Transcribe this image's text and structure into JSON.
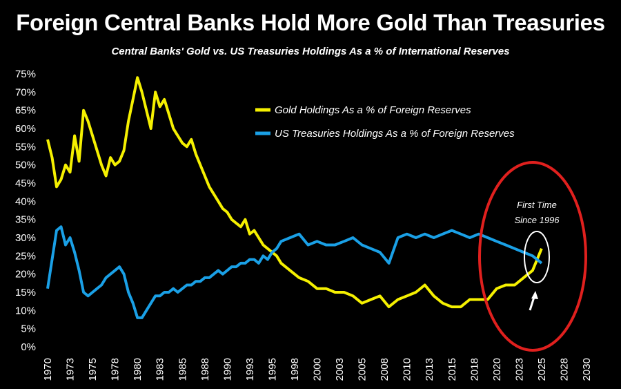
{
  "title": "Foreign Central Banks Hold More Gold Than Treasuries",
  "subtitle": "Central Banks' Gold vs. US Treasuries Holdings As a % of International Reserves",
  "colors": {
    "gold": "#f5f000",
    "treasuries": "#1aa0e6",
    "circle": "#e0201e",
    "background": "#000000"
  },
  "chart_data": {
    "type": "line",
    "title": "Foreign Central Banks Hold More Gold Than Treasuries",
    "subtitle": "Central Banks' Gold vs. US Treasuries Holdings As a % of International Reserves",
    "xlabel": "",
    "ylabel": "",
    "xlim": [
      1970,
      2030
    ],
    "ylim": [
      0,
      75
    ],
    "x_ticks": [
      "1970",
      "1973",
      "1975",
      "1978",
      "1980",
      "1983",
      "1985",
      "1988",
      "1990",
      "1993",
      "1995",
      "1998",
      "2000",
      "2003",
      "2005",
      "2008",
      "2010",
      "2013",
      "2015",
      "2018",
      "2020",
      "2023",
      "2025",
      "2028",
      "2030"
    ],
    "y_ticks": [
      "0%",
      "5%",
      "10%",
      "15%",
      "20%",
      "25%",
      "30%",
      "35%",
      "40%",
      "45%",
      "50%",
      "55%",
      "60%",
      "65%",
      "70%",
      "75%"
    ],
    "grid": false,
    "legend_position": "top-right",
    "series": [
      {
        "name": "Gold Holdings As a % of Foreign Reserves",
        "color": "#f5f000",
        "x": [
          1970,
          1970.5,
          1971,
          1971.5,
          1972,
          1972.5,
          1973,
          1973.5,
          1974,
          1974.5,
          1975,
          1975.5,
          1976,
          1976.5,
          1977,
          1977.5,
          1978,
          1978.5,
          1979,
          1979.5,
          1980,
          1980.5,
          1981,
          1981.5,
          1982,
          1982.5,
          1983,
          1983.5,
          1984,
          1984.5,
          1985,
          1985.5,
          1986,
          1986.5,
          1987,
          1987.5,
          1988,
          1988.5,
          1989,
          1989.5,
          1990,
          1990.5,
          1991,
          1991.5,
          1992,
          1992.5,
          1993,
          1993.5,
          1994,
          1994.5,
          1995,
          1995.5,
          1996,
          1997,
          1998,
          1999,
          2000,
          2001,
          2002,
          2003,
          2004,
          2005,
          2006,
          2007,
          2008,
          2009,
          2010,
          2011,
          2012,
          2013,
          2014,
          2015,
          2016,
          2017,
          2018,
          2019,
          2020,
          2021,
          2022,
          2023,
          2024,
          2024.5,
          2025
        ],
        "values": [
          57,
          52,
          44,
          46,
          50,
          48,
          58,
          51,
          65,
          62,
          58,
          54,
          50,
          47,
          52,
          50,
          51,
          54,
          62,
          68,
          74,
          70,
          65,
          60,
          70,
          66,
          68,
          64,
          60,
          58,
          56,
          55,
          57,
          53,
          50,
          47,
          44,
          42,
          40,
          38,
          37,
          35,
          34,
          33,
          35,
          31,
          32,
          30,
          28,
          27,
          26,
          25,
          23,
          21,
          19,
          18,
          16,
          16,
          15,
          15,
          14,
          12,
          13,
          14,
          11,
          13,
          14,
          15,
          17,
          14,
          12,
          11,
          11,
          13,
          13,
          13,
          16,
          17,
          17,
          19,
          21,
          24,
          27
        ]
      },
      {
        "name": "US Treasuries Holdings As a % of Foreign Reserves",
        "color": "#1aa0e6",
        "x": [
          1970,
          1970.5,
          1971,
          1971.5,
          1972,
          1972.5,
          1973,
          1973.5,
          1974,
          1974.5,
          1975,
          1975.5,
          1976,
          1976.5,
          1977,
          1977.5,
          1978,
          1978.5,
          1979,
          1979.5,
          1980,
          1980.5,
          1981,
          1981.5,
          1982,
          1982.5,
          1983,
          1983.5,
          1984,
          1984.5,
          1985,
          1985.5,
          1986,
          1986.5,
          1987,
          1987.5,
          1988,
          1988.5,
          1989,
          1989.5,
          1990,
          1990.5,
          1991,
          1991.5,
          1992,
          1992.5,
          1993,
          1993.5,
          1994,
          1994.5,
          1995,
          1995.5,
          1996,
          1997,
          1998,
          1999,
          2000,
          2001,
          2002,
          2003,
          2004,
          2005,
          2006,
          2007,
          2008,
          2009,
          2010,
          2011,
          2012,
          2013,
          2014,
          2015,
          2016,
          2017,
          2018,
          2019,
          2020,
          2021,
          2022,
          2023,
          2024,
          2024.5,
          2025
        ],
        "values": [
          16,
          24,
          32,
          33,
          28,
          30,
          26,
          21,
          15,
          14,
          15,
          16,
          17,
          19,
          20,
          21,
          22,
          20,
          15,
          12,
          8,
          8,
          10,
          12,
          14,
          14,
          15,
          15,
          16,
          15,
          16,
          17,
          17,
          18,
          18,
          19,
          19,
          20,
          21,
          20,
          21,
          22,
          22,
          23,
          23,
          24,
          24,
          23,
          25,
          24,
          26,
          27,
          29,
          30,
          31,
          28,
          29,
          28,
          28,
          29,
          30,
          28,
          27,
          26,
          23,
          30,
          31,
          30,
          31,
          30,
          31,
          32,
          31,
          30,
          31,
          30,
          29,
          28,
          27,
          26,
          25,
          24,
          23
        ]
      }
    ],
    "annotations": [
      "First Time",
      "Since 1996"
    ]
  }
}
